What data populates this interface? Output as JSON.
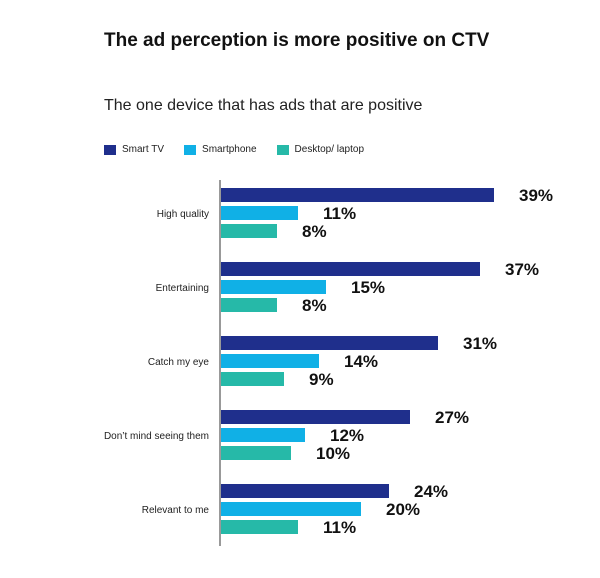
{
  "chart_data": {
    "type": "bar",
    "orientation": "horizontal",
    "title": "The ad perception is more positive on CTV",
    "subtitle": "The one device that has ads that are positive",
    "categories": [
      "High quality",
      "Entertaining",
      "Catch my eye",
      "Don’t mind seeing them",
      "Relevant to me"
    ],
    "series": [
      {
        "name": "Smart TV",
        "color": "#1f2f8c",
        "values": [
          39,
          37,
          31,
          27,
          24
        ],
        "labels": [
          "39%",
          "37%",
          "31%",
          "27%",
          "24%"
        ]
      },
      {
        "name": "Smartphone",
        "color": "#10b0e6",
        "values": [
          11,
          15,
          14,
          12,
          20
        ],
        "labels": [
          "11%",
          "15%",
          "14%",
          "12%",
          "20%"
        ]
      },
      {
        "name": "Desktop/ laptop",
        "color": "#26b9a8",
        "values": [
          8,
          8,
          9,
          10,
          11
        ],
        "labels": [
          "8%",
          "8%",
          "9%",
          "10%",
          "11%"
        ]
      }
    ],
    "xlim": [
      0,
      40
    ],
    "legend_position": "top-left",
    "grid": false
  }
}
